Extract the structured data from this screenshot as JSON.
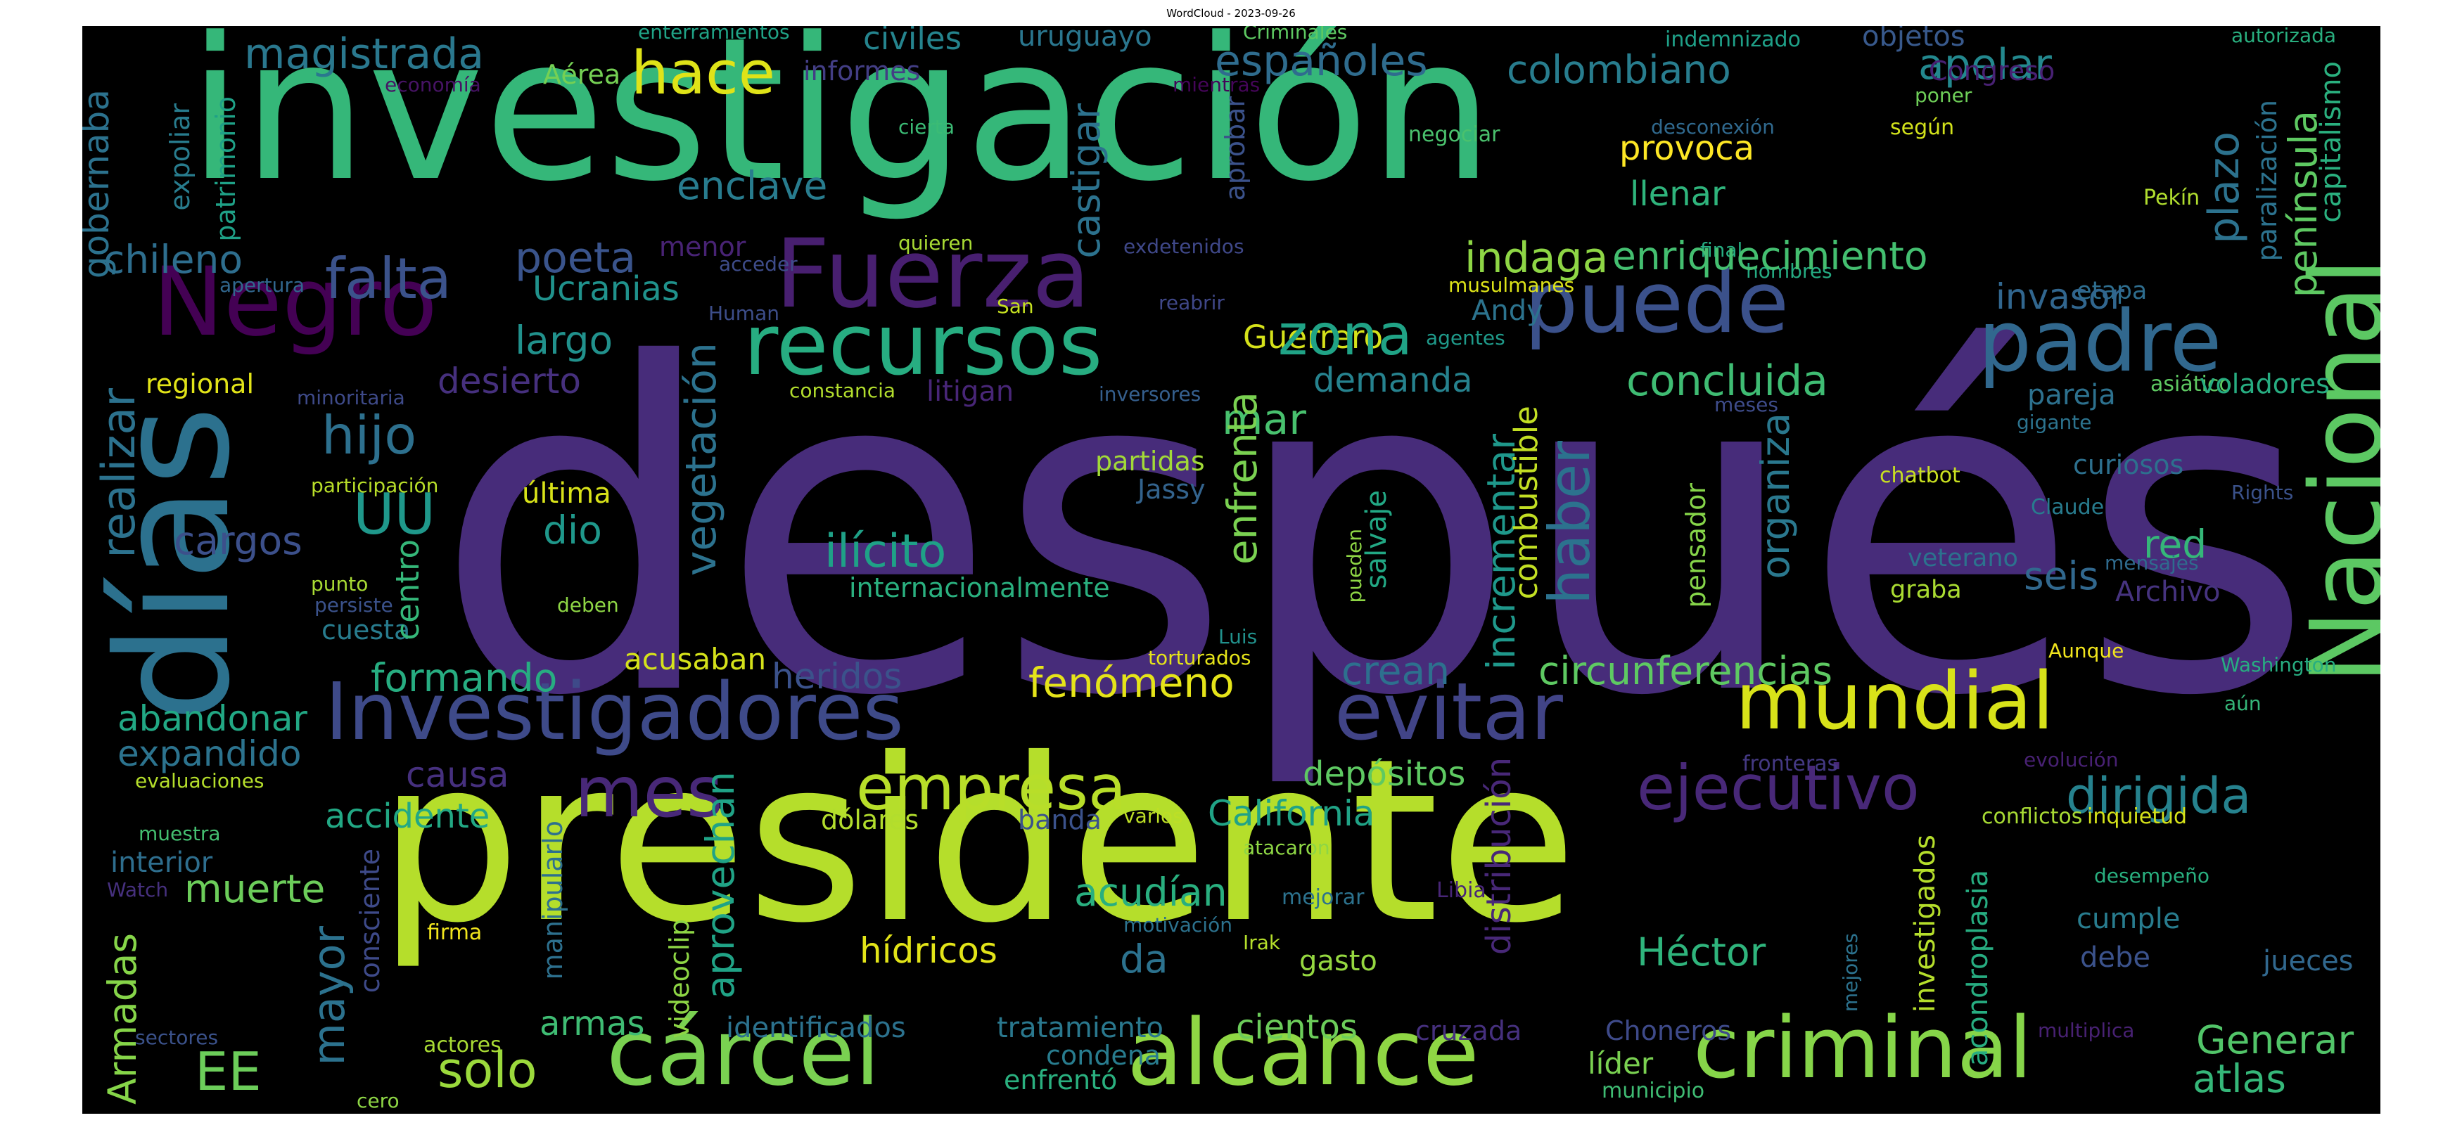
{
  "title": "WordCloud - 2023-09-26",
  "colors": {
    "background": "#000000",
    "palette": [
      "#440154",
      "#472c7a",
      "#3b518b",
      "#2c718e",
      "#21908d",
      "#27ad81",
      "#5cc863",
      "#aadc32",
      "#fde725"
    ]
  },
  "words": [
    {
      "text": "después",
      "color": "#472c7a",
      "rot": 0
    },
    {
      "text": "presidente",
      "color": "#b5de2b",
      "rot": 0
    },
    {
      "text": "investigación",
      "color": "#35b779",
      "rot": 0
    },
    {
      "text": "días",
      "color": "#2c718e",
      "rot": 90
    },
    {
      "text": "Nacional",
      "color": "#5cc863",
      "rot": 90
    },
    {
      "text": "Negro",
      "color": "#440154",
      "rot": 0
    },
    {
      "text": "Fuerza",
      "color": "#481f70",
      "rot": 0
    },
    {
      "text": "recursos",
      "color": "#27ad81",
      "rot": 0
    },
    {
      "text": "puede",
      "color": "#3b518b",
      "rot": 0
    },
    {
      "text": "padre",
      "color": "#31688e",
      "rot": 0
    },
    {
      "text": "Investigadores",
      "color": "#3e4a89",
      "rot": 0
    },
    {
      "text": "evitar",
      "color": "#414487",
      "rot": 0
    },
    {
      "text": "mundial",
      "color": "#d8e219",
      "rot": 0
    },
    {
      "text": "mes",
      "color": "#482878",
      "rot": 0
    },
    {
      "text": "empresa",
      "color": "#b8de29",
      "rot": 0
    },
    {
      "text": "ejecutivo",
      "color": "#482878",
      "rot": 0
    },
    {
      "text": "cárcel",
      "color": "#7ad151",
      "rot": 0
    },
    {
      "text": "alcance",
      "color": "#8fd744",
      "rot": 0
    },
    {
      "text": "criminal",
      "color": "#86d549",
      "rot": 0
    },
    {
      "text": "falta",
      "color": "#3b528b",
      "rot": 0
    },
    {
      "text": "hijo",
      "color": "#2d708e",
      "rot": 0
    },
    {
      "text": "UU",
      "color": "#1f988b",
      "rot": 0
    },
    {
      "text": "EE",
      "color": "#6ccd5a",
      "rot": 0
    },
    {
      "text": "solo",
      "color": "#9bd93c",
      "rot": 0
    },
    {
      "text": "dirigida",
      "color": "#26828e",
      "rot": 0
    },
    {
      "text": "atlas",
      "color": "#35b779",
      "rot": 0
    },
    {
      "text": "Generar",
      "color": "#52c569",
      "rot": 0
    },
    {
      "text": "realizar",
      "color": "#2c728e",
      "rot": 90
    },
    {
      "text": "magistrada",
      "color": "#2a788e",
      "rot": 0
    },
    {
      "text": "hace",
      "color": "#dfe318",
      "rot": 0
    },
    {
      "text": "españoles",
      "color": "#2f6c8e",
      "rot": 0
    },
    {
      "text": "colombiano",
      "color": "#287d8e",
      "rot": 0
    },
    {
      "text": "apelar",
      "color": "#23888e",
      "rot": 0
    },
    {
      "text": "civiles",
      "color": "#25848e",
      "rot": 0
    },
    {
      "text": "uruguayo",
      "color": "#2a768e",
      "rot": 0
    },
    {
      "text": "Criminales",
      "color": "#5ec962",
      "rot": 0
    },
    {
      "text": "enterramientos",
      "color": "#20a386",
      "rot": 0
    },
    {
      "text": "indemnizado",
      "color": "#1fa088",
      "rot": 0
    },
    {
      "text": "objetos",
      "color": "#38598c",
      "rot": 0
    },
    {
      "text": "autorizada",
      "color": "#29af7f",
      "rot": 0
    },
    {
      "text": "Aérea",
      "color": "#75d054",
      "rot": 0
    },
    {
      "text": "informes",
      "color": "#433e85",
      "rot": 0
    },
    {
      "text": "economía",
      "color": "#471365",
      "rot": 0
    },
    {
      "text": "mientras",
      "color": "#450559",
      "rot": 0
    },
    {
      "text": "Congreso",
      "color": "#482173",
      "rot": 0
    },
    {
      "text": "provoca",
      "color": "#fde725",
      "rot": 0
    },
    {
      "text": "llenar",
      "color": "#2fb47c",
      "rot": 0
    },
    {
      "text": "enclave",
      "color": "#287c8e",
      "rot": 0
    },
    {
      "text": "cierta",
      "color": "#3bbb75",
      "rot": 0
    },
    {
      "text": "negociar",
      "color": "#4ac16d",
      "rot": 0
    },
    {
      "text": "según",
      "color": "#d2e21b",
      "rot": 0
    },
    {
      "text": "poner",
      "color": "#6ece58",
      "rot": 0
    },
    {
      "text": "desconexión",
      "color": "#30698e",
      "rot": 0
    },
    {
      "text": "Pekín",
      "color": "#b0dd2f",
      "rot": 0
    },
    {
      "text": "chileno",
      "color": "#2e6e8e",
      "rot": 0
    },
    {
      "text": "poeta",
      "color": "#3a548c",
      "rot": 0
    },
    {
      "text": "menor",
      "color": "#482374",
      "rot": 0
    },
    {
      "text": "quieren",
      "color": "#a8db34",
      "rot": 0
    },
    {
      "text": "exdetenidos",
      "color": "#3f4889",
      "rot": 0
    },
    {
      "text": "final",
      "color": "#26ad81",
      "rot": 0
    },
    {
      "text": "hombres",
      "color": "#25ab82",
      "rot": 0
    },
    {
      "text": "indaga",
      "color": "#8ed645",
      "rot": 0
    },
    {
      "text": "enriquecimiento",
      "color": "#44bf70",
      "rot": 0
    },
    {
      "text": "etapa",
      "color": "#2e6d8e",
      "rot": 0
    },
    {
      "text": "invasor",
      "color": "#31668e",
      "rot": 0
    },
    {
      "text": "acceder",
      "color": "#3e4c8a",
      "rot": 0
    },
    {
      "text": "apertura",
      "color": "#31678e",
      "rot": 0
    },
    {
      "text": "Ucranias",
      "color": "#20928c",
      "rot": 0
    },
    {
      "text": "San",
      "color": "#c5e021",
      "rot": 0
    },
    {
      "text": "Human",
      "color": "#3d4e8a",
      "rot": 0
    },
    {
      "text": "reabrir",
      "color": "#3f4788",
      "rot": 0
    },
    {
      "text": "musulmanes",
      "color": "#dde318",
      "rot": 0
    },
    {
      "text": "Andy",
      "color": "#2c738e",
      "rot": 0
    },
    {
      "text": "Guerrero",
      "color": "#d5e21a",
      "rot": 0
    },
    {
      "text": "agentes",
      "color": "#1f9a8a",
      "rot": 0
    },
    {
      "text": "largo",
      "color": "#21918c",
      "rot": 0
    },
    {
      "text": "mar",
      "color": "#48c16e",
      "rot": 0
    },
    {
      "text": "zona",
      "color": "#20a386",
      "rot": 0
    },
    {
      "text": "concluida",
      "color": "#3fbc73",
      "rot": 0
    },
    {
      "text": "asiático",
      "color": "#5ec962",
      "rot": 0
    },
    {
      "text": "voladores",
      "color": "#27ad81",
      "rot": 0
    },
    {
      "text": "pareja",
      "color": "#2d718e",
      "rot": 0
    },
    {
      "text": "gigante",
      "color": "#2c738e",
      "rot": 0
    },
    {
      "text": "demanda",
      "color": "#26828e",
      "rot": 0
    },
    {
      "text": "regional",
      "color": "#e2e418",
      "rot": 0
    },
    {
      "text": "desierto",
      "color": "#46307e",
      "rot": 0
    },
    {
      "text": "minoritaria",
      "color": "#3e4a89",
      "rot": 0
    },
    {
      "text": "constancia",
      "color": "#b2dd2d",
      "rot": 0
    },
    {
      "text": "litigan",
      "color": "#482677",
      "rot": 0
    },
    {
      "text": "inversores",
      "color": "#355f8d",
      "rot": 0
    },
    {
      "text": "meses",
      "color": "#3e4c8a",
      "rot": 0
    },
    {
      "text": "partidas",
      "color": "#a2da37",
      "rot": 0
    },
    {
      "text": "Jassy",
      "color": "#33638d",
      "rot": 0
    },
    {
      "text": "chatbot",
      "color": "#c8e020",
      "rot": 0
    },
    {
      "text": "curiosos",
      "color": "#2d708e",
      "rot": 0
    },
    {
      "text": "Rights",
      "color": "#3b528b",
      "rot": 0
    },
    {
      "text": "Claude",
      "color": "#287c8e",
      "rot": 0
    },
    {
      "text": "participación",
      "color": "#b8de29",
      "rot": 0
    },
    {
      "text": "última",
      "color": "#d8e219",
      "rot": 0
    },
    {
      "text": "dio",
      "color": "#1f988b",
      "rot": 0
    },
    {
      "text": "cargos",
      "color": "#3c508b",
      "rot": 0
    },
    {
      "text": "ilícito",
      "color": "#1fa187",
      "rot": 0
    },
    {
      "text": "seis",
      "color": "#31688e",
      "rot": 0
    },
    {
      "text": "red",
      "color": "#35b779",
      "rot": 0
    },
    {
      "text": "veterano",
      "color": "#2c728e",
      "rot": 0
    },
    {
      "text": "mensajes",
      "color": "#2f6b8e",
      "rot": 0
    },
    {
      "text": "Archivo",
      "color": "#46337f",
      "rot": 0
    },
    {
      "text": "graba",
      "color": "#aadc32",
      "rot": 0
    },
    {
      "text": "internacionalmente",
      "color": "#2ab07f",
      "rot": 0
    },
    {
      "text": "punto",
      "color": "#a8db34",
      "rot": 0
    },
    {
      "text": "persiste",
      "color": "#3b528b",
      "rot": 0
    },
    {
      "text": "deben",
      "color": "#8ed645",
      "rot": 0
    },
    {
      "text": "cuesta",
      "color": "#287c8e",
      "rot": 0
    },
    {
      "text": "Luis",
      "color": "#21918c",
      "rot": 0
    },
    {
      "text": "torturados",
      "color": "#e5e419",
      "rot": 0
    },
    {
      "text": "formando",
      "color": "#27ad81",
      "rot": 0
    },
    {
      "text": "acusaban",
      "color": "#d5e21a",
      "rot": 0
    },
    {
      "text": "heridos",
      "color": "#3b528b",
      "rot": 0
    },
    {
      "text": "fenómeno",
      "color": "#e5e419",
      "rot": 0
    },
    {
      "text": "crean",
      "color": "#2d708e",
      "rot": 0
    },
    {
      "text": "circunferencias",
      "color": "#5ec962",
      "rot": 0
    },
    {
      "text": "Aunque",
      "color": "#f1e51d",
      "rot": 0
    },
    {
      "text": "Washington",
      "color": "#27ad81",
      "rot": 0
    },
    {
      "text": "aún",
      "color": "#35b779",
      "rot": 0
    },
    {
      "text": "abandonar",
      "color": "#22a884",
      "rot": 0
    },
    {
      "text": "expandido",
      "color": "#2c738e",
      "rot": 0
    },
    {
      "text": "evaluaciones",
      "color": "#b5de2b",
      "rot": 0
    },
    {
      "text": "causa",
      "color": "#46307e",
      "rot": 0
    },
    {
      "text": "accidente",
      "color": "#22a884",
      "rot": 0
    },
    {
      "text": "depósitos",
      "color": "#5ec962",
      "rot": 0
    },
    {
      "text": "California",
      "color": "#20a386",
      "rot": 0
    },
    {
      "text": "fronteras",
      "color": "#443983",
      "rot": 0
    },
    {
      "text": "evolución",
      "color": "#482173",
      "rot": 0
    },
    {
      "text": "dólares",
      "color": "#b2dd2d",
      "rot": 0
    },
    {
      "text": "banda",
      "color": "#3b528b",
      "rot": 0
    },
    {
      "text": "varios",
      "color": "#bddf26",
      "rot": 0
    },
    {
      "text": "conflictos",
      "color": "#a8db34",
      "rot": 0
    },
    {
      "text": "inquietud",
      "color": "#d5e21a",
      "rot": 0
    },
    {
      "text": "interior",
      "color": "#2e6e8e",
      "rot": 0
    },
    {
      "text": "muestra",
      "color": "#44bf70",
      "rot": 0
    },
    {
      "text": "muerte",
      "color": "#6ccd5a",
      "rot": 0
    },
    {
      "text": "Watch",
      "color": "#46307e",
      "rot": 0
    },
    {
      "text": "atacaron",
      "color": "#8ed645",
      "rot": 0
    },
    {
      "text": "acudían",
      "color": "#29af7f",
      "rot": 0
    },
    {
      "text": "cumple",
      "color": "#287c8e",
      "rot": 0
    },
    {
      "text": "desempeño",
      "color": "#29af7f",
      "rot": 0
    },
    {
      "text": "mejorar",
      "color": "#2c728e",
      "rot": 0
    },
    {
      "text": "Libia",
      "color": "#482677",
      "rot": 0
    },
    {
      "text": "firma",
      "color": "#f1e51d",
      "rot": 0
    },
    {
      "text": "motivación",
      "color": "#2c728e",
      "rot": 0
    },
    {
      "text": "Irak",
      "color": "#b5de2b",
      "rot": 0
    },
    {
      "text": "hídricos",
      "color": "#e2e418",
      "rot": 0
    },
    {
      "text": "da",
      "color": "#2c728e",
      "rot": 0
    },
    {
      "text": "gasto",
      "color": "#95d840",
      "rot": 0
    },
    {
      "text": "Héctor",
      "color": "#2fb47c",
      "rot": 0
    },
    {
      "text": "debe",
      "color": "#3b528b",
      "rot": 0
    },
    {
      "text": "jueces",
      "color": "#31688e",
      "rot": 0
    },
    {
      "text": "armas",
      "color": "#3fbc73",
      "rot": 0
    },
    {
      "text": "sectores",
      "color": "#3b528b",
      "rot": 0
    },
    {
      "text": "actores",
      "color": "#a8db34",
      "rot": 0
    },
    {
      "text": "identificados",
      "color": "#2c728e",
      "rot": 0
    },
    {
      "text": "tratamiento",
      "color": "#2a788e",
      "rot": 0
    },
    {
      "text": "cientos",
      "color": "#6ccd5a",
      "rot": 0
    },
    {
      "text": "cruzada",
      "color": "#46307e",
      "rot": 0
    },
    {
      "text": "Choneros",
      "color": "#3e4a89",
      "rot": 0
    },
    {
      "text": "multiplica",
      "color": "#482173",
      "rot": 0
    },
    {
      "text": "condena",
      "color": "#287c8e",
      "rot": 0
    },
    {
      "text": "enfrentó",
      "color": "#2ab07f",
      "rot": 0
    },
    {
      "text": "líder",
      "color": "#7ad151",
      "rot": 0
    },
    {
      "text": "municipio",
      "color": "#3fbc73",
      "rot": 0
    },
    {
      "text": "cero",
      "color": "#8ed645",
      "rot": 0
    },
    {
      "text": "Armadas",
      "color": "#86d549",
      "rot": 90
    },
    {
      "text": "mayor",
      "color": "#2c728e",
      "rot": 90
    },
    {
      "text": "consciente",
      "color": "#3e4a89",
      "rot": 90
    },
    {
      "text": "manipularlo",
      "color": "#2d708e",
      "rot": 90
    },
    {
      "text": "videoclip",
      "color": "#8ed645",
      "rot": 90
    },
    {
      "text": "aprovechan",
      "color": "#20a386",
      "rot": 90
    },
    {
      "text": "distribución",
      "color": "#482878",
      "rot": 90
    },
    {
      "text": "investigados",
      "color": "#b5de2b",
      "rot": 90
    },
    {
      "text": "acondroplasia",
      "color": "#27ad81",
      "rot": 90
    },
    {
      "text": "mejores",
      "color": "#2c728e",
      "rot": 90
    },
    {
      "text": "centro",
      "color": "#35b779",
      "rot": 90
    },
    {
      "text": "vegetación",
      "color": "#2c728e",
      "rot": 90
    },
    {
      "text": "enfrenta",
      "color": "#7ad151",
      "rot": 90
    },
    {
      "text": "incrementar",
      "color": "#1f988b",
      "rot": 90
    },
    {
      "text": "combustible",
      "color": "#c2df23",
      "rot": 90
    },
    {
      "text": "haber",
      "color": "#2c728e",
      "rot": 90
    },
    {
      "text": "organiza",
      "color": "#2a788e",
      "rot": 90
    },
    {
      "text": "salvaje",
      "color": "#22a884",
      "rot": 90
    },
    {
      "text": "pueden",
      "color": "#8ed645",
      "rot": 90
    },
    {
      "text": "pensador",
      "color": "#86d549",
      "rot": 90
    },
    {
      "text": "gobernaba",
      "color": "#2c728e",
      "rot": 90
    },
    {
      "text": "expoliar",
      "color": "#287c8e",
      "rot": 90
    },
    {
      "text": "patrimonio",
      "color": "#1fa187",
      "rot": 90
    },
    {
      "text": "castigar",
      "color": "#2c728e",
      "rot": 90
    },
    {
      "text": "aprobar",
      "color": "#3b528b",
      "rot": 90
    },
    {
      "text": "plazo",
      "color": "#2c728e",
      "rot": 90
    },
    {
      "text": "península",
      "color": "#5ec962",
      "rot": 90
    },
    {
      "text": "paralización",
      "color": "#2c728e",
      "rot": 90
    },
    {
      "text": "capitalismo",
      "color": "#2ab07f",
      "rot": 90
    }
  ]
}
